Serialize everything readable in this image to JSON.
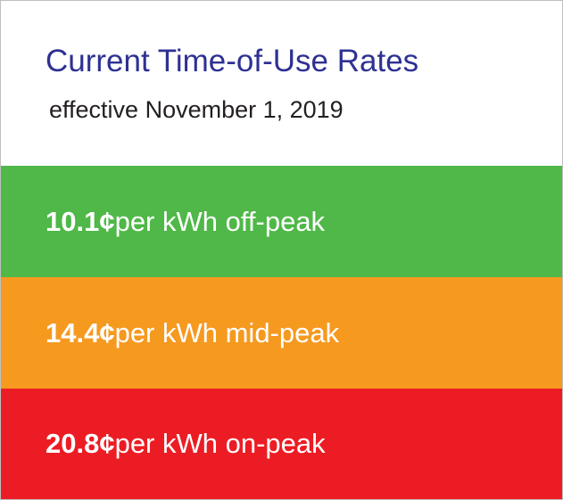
{
  "header": {
    "title": "Current Time-of-Use Rates",
    "subtitle": "effective November 1, 2019"
  },
  "rates": [
    {
      "rate": "10.1¢",
      "description": " per kWh off-peak",
      "color": "#4fb848"
    },
    {
      "rate": "14.4¢",
      "description": " per kWh mid-peak",
      "color": "#f6991f"
    },
    {
      "rate": "20.8¢",
      "description": " per kWh on-peak",
      "color": "#ec1c24"
    }
  ],
  "colors": {
    "title": "#2e3192",
    "subtitle": "#231f20",
    "band_text": "#ffffff",
    "background": "#ffffff",
    "border": "#bfbfbf"
  }
}
